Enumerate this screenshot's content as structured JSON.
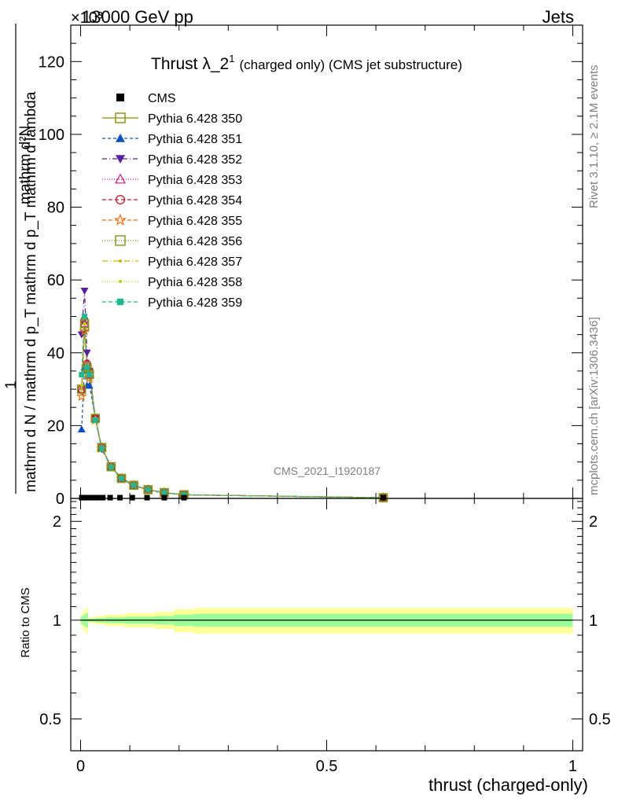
{
  "header": {
    "energy": "13000 GeV pp",
    "category": "Jets",
    "exponent": "×10³"
  },
  "side": {
    "rivet": "Rivet 3.1.10, ≥ 2.1M events",
    "mcplots": "mcplots.cern.ch [arXiv:1306.3436]"
  },
  "analysis_id": "CMS_2021_I1920187",
  "colors": {
    "cms": "#000000",
    "band_yellow": "#ffff99",
    "band_green": "#99ff99"
  },
  "chart_data": [
    {
      "type": "line",
      "title": "Thrust λ_2¹",
      "title_main": "Thrust λ_2",
      "title_sup": "1",
      "subtitle": "(charged only) (CMS jet substructure)",
      "ylabel_top": "mathrm d²N",
      "ylabel_bottom": "mathrm d N / mathrm d p_T mathrm d p_T mathrm d lambda",
      "ylabel_one": "1",
      "ylim": [
        0,
        130
      ],
      "y_unit_multiplier": 1000,
      "xlim": [
        -0.02,
        1.02
      ],
      "x_ticks": [
        0,
        0.5,
        1
      ],
      "x_tick_labels": [
        "0",
        "0.5",
        "1"
      ],
      "y_ticks": [
        0,
        20,
        40,
        60,
        80,
        100,
        120
      ],
      "y_tick_labels": [
        "0",
        "20",
        "40",
        "60",
        "80",
        "100",
        "120"
      ],
      "legend_position": "top-left",
      "cms": {
        "name": "CMS",
        "x": [
          0.0025,
          0.0075,
          0.0125,
          0.0175,
          0.025,
          0.035,
          0.045,
          0.06,
          0.08,
          0.105,
          0.135,
          0.17,
          0.21,
          0.615
        ],
        "y": [
          0.1,
          0.1,
          0.1,
          0.1,
          0.1,
          0.1,
          0.1,
          0.1,
          0.1,
          0.1,
          0.1,
          0.1,
          0.1,
          0.1
        ]
      },
      "x": [
        0.002,
        0.008,
        0.013,
        0.018,
        0.03,
        0.043,
        0.062,
        0.083,
        0.108,
        0.137,
        0.17,
        0.21,
        0.615
      ],
      "series": [
        {
          "name": "Pythia 6.428 350",
          "color": "#8b8b00",
          "dash": "",
          "marker": "square-open",
          "y": [
            30,
            47,
            36,
            34,
            22,
            14,
            8.7,
            5.5,
            3.6,
            2.4,
            1.6,
            1.0,
            0.2
          ]
        },
        {
          "name": "Pythia 6.428 351",
          "color": "#0a50c8",
          "dash": "4,3",
          "marker": "triangle-up",
          "y": [
            19,
            36,
            31,
            31,
            22,
            14,
            8.8,
            5.6,
            3.7,
            2.4,
            1.6,
            1.0,
            0.2
          ]
        },
        {
          "name": "Pythia 6.428 352",
          "color": "#5a1fa0",
          "dash": "6,3,1,3",
          "marker": "triangle-down",
          "y": [
            45,
            57,
            40,
            35,
            22,
            13.5,
            8.5,
            5.4,
            3.5,
            2.3,
            1.5,
            1.0,
            0.2
          ]
        },
        {
          "name": "Pythia 6.428 353",
          "color": "#c71585",
          "dash": "1,2",
          "marker": "triangle-open",
          "y": [
            30,
            48,
            37,
            34,
            22,
            14,
            8.7,
            5.5,
            3.6,
            2.4,
            1.6,
            1.0,
            0.2
          ]
        },
        {
          "name": "Pythia 6.428 354",
          "color": "#d0101e",
          "dash": "5,3",
          "marker": "circle-open",
          "y": [
            30,
            49,
            37,
            35,
            22,
            14,
            8.7,
            5.5,
            3.6,
            2.4,
            1.6,
            1.0,
            0.2
          ]
        },
        {
          "name": "Pythia 6.428 355",
          "color": "#ee7010",
          "dash": "5,3",
          "marker": "star-open",
          "y": [
            28,
            46,
            36,
            33,
            21.5,
            13.8,
            8.6,
            5.5,
            3.6,
            2.4,
            1.6,
            1.0,
            0.2
          ]
        },
        {
          "name": "Pythia 6.428 356",
          "color": "#7a9a10",
          "dash": "1,2",
          "marker": "square-open",
          "y": [
            30,
            48,
            36,
            34,
            22,
            14,
            8.7,
            5.5,
            3.6,
            2.4,
            1.6,
            1.0,
            0.2
          ]
        },
        {
          "name": "Pythia 6.428 357",
          "color": "#c8b400",
          "dash": "7,3,1,3",
          "marker": "dot",
          "y": [
            30,
            48,
            36,
            34,
            22,
            14,
            8.7,
            5.5,
            3.6,
            2.4,
            1.6,
            1.0,
            0.2
          ]
        },
        {
          "name": "Pythia 6.428 358",
          "color": "#b4d200",
          "dash": "1,2",
          "marker": "dot",
          "y": [
            31,
            48,
            36,
            34,
            22,
            14,
            8.7,
            5.5,
            3.6,
            2.4,
            1.6,
            1.0,
            0.2
          ]
        },
        {
          "name": "Pythia 6.428 359",
          "color": "#20b890",
          "dash": "5,3",
          "marker": "square-filled",
          "y": [
            34,
            50,
            36,
            34,
            21.5,
            13.8,
            8.6,
            5.5,
            3.6,
            2.4,
            1.6,
            1.0,
            0.2
          ]
        }
      ]
    },
    {
      "type": "area",
      "ylabel": "Ratio to CMS",
      "ylim": [
        0.4,
        2.35
      ],
      "y_scale": "log",
      "y_ticks": [
        0.5,
        1,
        2
      ],
      "y_tick_labels": [
        "0.5",
        "1",
        "2"
      ],
      "xlim": [
        -0.02,
        1.02
      ],
      "x_ticks": [
        0,
        0.5,
        1
      ],
      "x_tick_labels": [
        "0",
        "0.5",
        "1"
      ],
      "xlabel": "thrust (charged-only)",
      "bands": {
        "edges": [
          0,
          0.005,
          0.01,
          0.015,
          0.02,
          0.03,
          0.04,
          0.05,
          0.07,
          0.09,
          0.12,
          0.15,
          0.19,
          0.23,
          1.0
        ],
        "yellow_lo": [
          0.96,
          0.93,
          0.91,
          0.98,
          0.98,
          0.97,
          0.97,
          0.96,
          0.96,
          0.95,
          0.95,
          0.94,
          0.92,
          0.91
        ],
        "yellow_hi": [
          1.04,
          1.07,
          1.09,
          1.02,
          1.02,
          1.03,
          1.03,
          1.04,
          1.04,
          1.05,
          1.05,
          1.06,
          1.08,
          1.09
        ],
        "green_lo": [
          0.975,
          0.96,
          0.95,
          0.99,
          0.99,
          0.985,
          0.985,
          0.98,
          0.98,
          0.975,
          0.975,
          0.97,
          0.96,
          0.955
        ],
        "green_hi": [
          1.025,
          1.04,
          1.05,
          1.01,
          1.01,
          1.015,
          1.015,
          1.02,
          1.02,
          1.025,
          1.025,
          1.03,
          1.04,
          1.045
        ]
      },
      "reference_line": 1
    }
  ]
}
